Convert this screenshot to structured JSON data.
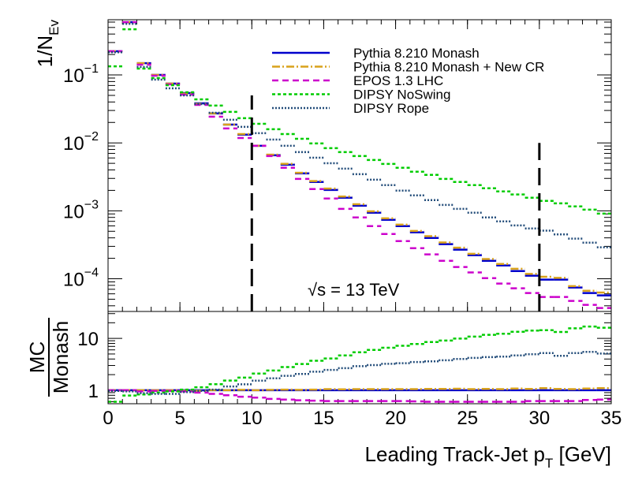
{
  "chart_data": {
    "type": "histogram",
    "ylabel": {
      "main": "1/N",
      "sub": "Ev"
    },
    "xlabel": {
      "main": "Leading Track-Jet p",
      "sub": "T",
      "unit": " [GeV]"
    },
    "annotation": "√s = 13 TeV",
    "log_y": true,
    "bins": [
      0,
      1,
      2,
      3,
      4,
      5,
      6,
      7,
      8,
      9,
      10,
      11,
      12,
      13,
      14,
      15,
      16,
      17,
      18,
      19,
      20,
      21,
      22,
      23,
      24,
      25,
      26,
      27,
      28,
      29,
      30,
      31,
      32,
      33,
      34,
      35
    ],
    "xlim": [
      0,
      35
    ],
    "xticks": [
      0,
      5,
      10,
      15,
      20,
      25,
      30,
      35
    ],
    "ylim": [
      3.3e-05,
      0.65
    ],
    "yticks": [
      {
        "value": 0.0001,
        "label": "10",
        "exponent": "−4"
      },
      {
        "value": 0.001,
        "label": "10",
        "exponent": "−3"
      },
      {
        "value": 0.01,
        "label": "10",
        "exponent": "−2"
      },
      {
        "value": 0.1,
        "label": "10",
        "exponent": "−1"
      }
    ],
    "cut_lines": [
      {
        "x": 10,
        "y": 0.05
      },
      {
        "x": 30,
        "y": 0.01
      }
    ],
    "legend": "top-right",
    "series": [
      {
        "name": "Pythia 8.210 Monash",
        "color": "#0000cc",
        "style": "solid",
        "values": [
          0.223,
          0.597,
          0.149,
          0.1,
          0.0746,
          0.0541,
          0.0383,
          0.0271,
          0.0186,
          0.0132,
          0.00906,
          0.00658,
          0.00478,
          0.00356,
          0.00266,
          0.00203,
          0.00156,
          0.00119,
          0.000937,
          0.000738,
          0.000596,
          0.000482,
          0.000399,
          0.000323,
          0.000268,
          0.000222,
          0.000184,
          0.000157,
          0.00013,
          0.000111,
          9.72e-05,
          9.72e-05,
          7.43e-05,
          6.17e-05,
          5.69e-05
        ]
      },
      {
        "name": "Pythia 8.210 Monash + New CR",
        "color": "#d9a21b",
        "style": "dashdot",
        "values": [
          0.223,
          0.597,
          0.149,
          0.1,
          0.0746,
          0.053,
          0.0375,
          0.0271,
          0.0186,
          0.0135,
          0.00906,
          0.0067,
          0.00492,
          0.00363,
          0.00274,
          0.00213,
          0.00162,
          0.00125,
          0.000984,
          0.000775,
          0.000626,
          0.000506,
          0.000423,
          0.000342,
          0.000287,
          0.000233,
          0.000195,
          0.000165,
          0.00014,
          0.000118,
          0.000107,
          0.000103,
          7.8e-05,
          6.66e-05,
          6.26e-05
        ]
      },
      {
        "name": "EPOS 1.3 LHC",
        "color": "#cc00cc",
        "style": "dashed",
        "values": [
          0.223,
          0.597,
          0.1416,
          0.0974,
          0.0726,
          0.0513,
          0.0363,
          0.0243,
          0.0163,
          0.0118,
          0.00906,
          0.0064,
          0.0043,
          0.00295,
          0.00209,
          0.00152,
          0.00107,
          0.0008,
          0.000596,
          0.000456,
          0.000359,
          0.000282,
          0.000228,
          0.000184,
          0.000149,
          0.000124,
          0.000102,
          8.49e-05,
          7.24e-05,
          6.17e-05,
          5.4e-05,
          5.4e-05,
          4.72e-05,
          4.13e-05,
          3.71e-05
        ]
      },
      {
        "name": "DIPSY NoSwing",
        "color": "#00cc00",
        "style": "shortdash",
        "values": [
          0.134,
          0.47,
          0.124,
          0.0899,
          0.0707,
          0.0556,
          0.0437,
          0.0354,
          0.0286,
          0.0231,
          0.0191,
          0.0159,
          0.0135,
          0.0115,
          0.00982,
          0.00837,
          0.00732,
          0.0064,
          0.0056,
          0.0049,
          0.0043,
          0.00376,
          0.00338,
          0.00295,
          0.00266,
          0.00239,
          0.00215,
          0.00193,
          0.00174,
          0.00156,
          0.0014,
          0.00129,
          0.00116,
          0.00104,
          0.00091
        ]
      },
      {
        "name": "DIPSY Rope",
        "color": "#234d7a",
        "style": "dotted",
        "values": [
          0.216,
          0.565,
          0.131,
          0.0852,
          0.0635,
          0.05,
          0.0373,
          0.0278,
          0.0219,
          0.0172,
          0.0139,
          0.0112,
          0.00906,
          0.00732,
          0.00606,
          0.00502,
          0.00417,
          0.00346,
          0.00287,
          0.00239,
          0.00198,
          0.00169,
          0.00144,
          0.00122,
          0.00107,
          0.000937,
          0.0008,
          0.0007,
          0.00061,
          0.00055,
          0.00051,
          0.00045,
          0.00039,
          0.00034,
          0.00029
        ]
      }
    ],
    "ratio": {
      "ylabel": {
        "top": "MC",
        "bottom": "Monash"
      },
      "ylim": [
        0.55,
        33
      ],
      "yticks": [
        1,
        10
      ],
      "series": [
        {
          "values": [
            1,
            1,
            1,
            1,
            1,
            1,
            1,
            1,
            1,
            1,
            1,
            1,
            1,
            1,
            1,
            1,
            1,
            1,
            1,
            1,
            1,
            1,
            1,
            1,
            1,
            1,
            1,
            1,
            1,
            1,
            1,
            1,
            1,
            1,
            1
          ]
        },
        {
          "values": [
            1,
            1,
            1,
            1,
            1,
            0.98,
            0.98,
            1,
            1,
            1.02,
            1,
            1.02,
            1.03,
            1.02,
            1.03,
            1.05,
            1.04,
            1.05,
            1.05,
            1.05,
            1.05,
            1.05,
            1.06,
            1.06,
            1.07,
            1.05,
            1.06,
            1.05,
            1.08,
            1.06,
            1.1,
            1.06,
            1.05,
            1.08,
            1.1
          ]
        },
        {
          "values": [
            1,
            1,
            0.95,
            0.97,
            0.97,
            0.95,
            0.9,
            0.85,
            0.8,
            0.75,
            0.72,
            0.68,
            0.66,
            0.64,
            0.63,
            0.62,
            0.62,
            0.62,
            0.62,
            0.62,
            0.62,
            0.61,
            0.6,
            0.6,
            0.6,
            0.6,
            0.6,
            0.6,
            0.6,
            0.62,
            0.62,
            0.62,
            0.62,
            0.65,
            0.66
          ]
        },
        {
          "values": [
            0.6,
            0.79,
            0.83,
            0.9,
            0.95,
            1.03,
            1.14,
            1.31,
            1.54,
            1.75,
            2.1,
            2.4,
            2.8,
            3.2,
            3.7,
            4.1,
            4.7,
            5.4,
            6,
            6.6,
            7.2,
            7.8,
            8.5,
            9.1,
            9.9,
            10.8,
            11.7,
            12.3,
            13.4,
            14.1,
            14.4,
            13.3,
            15.6,
            16.9,
            16
          ]
        },
        {
          "values": [
            0.97,
            0.95,
            0.88,
            0.85,
            0.85,
            0.92,
            0.97,
            1.03,
            1.18,
            1.3,
            1.53,
            1.7,
            1.9,
            2.06,
            2.28,
            2.47,
            2.67,
            2.91,
            3.06,
            3.24,
            3.32,
            3.5,
            3.6,
            3.78,
            4,
            4.2,
            4.35,
            4.46,
            4.7,
            4.95,
            5.2,
            4.6,
            5.2,
            5.5,
            5.1
          ]
        }
      ]
    }
  }
}
